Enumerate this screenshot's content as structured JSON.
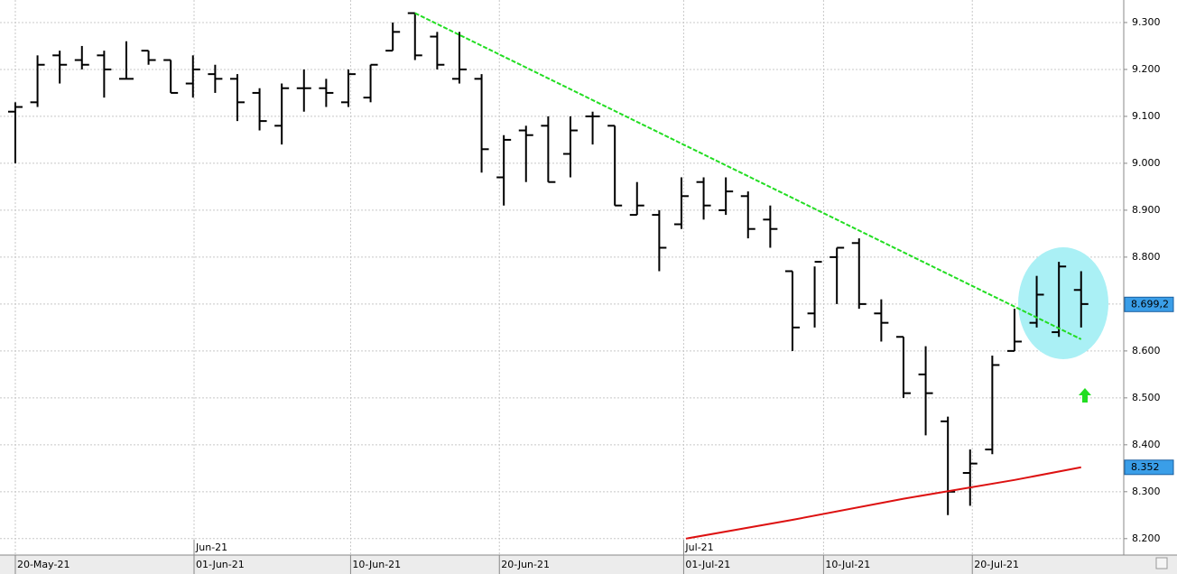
{
  "chart_data": {
    "type": "ohlc",
    "categories": [
      null,
      null,
      null,
      null,
      null,
      null,
      null,
      null,
      null,
      null,
      null,
      null,
      null,
      null,
      null,
      null,
      null,
      null,
      null,
      null,
      null,
      null,
      null,
      null,
      null,
      null,
      null,
      null,
      null,
      null,
      null,
      null,
      null,
      null,
      null,
      null,
      null,
      null,
      null,
      null,
      null,
      null,
      null,
      null,
      null,
      null,
      null,
      null,
      null
    ],
    "open": [
      9.11,
      9.13,
      9.23,
      9.22,
      9.23,
      9.18,
      9.24,
      9.22,
      9.17,
      9.19,
      9.18,
      9.15,
      9.08,
      9.16,
      9.16,
      9.13,
      9.14,
      9.24,
      9.32,
      9.27,
      9.18,
      9.18,
      8.97,
      9.07,
      9.08,
      9.02,
      9.1,
      9.08,
      8.89,
      8.89,
      8.87,
      8.96,
      8.9,
      8.93,
      8.88,
      8.77,
      8.68,
      8.8,
      8.83,
      8.68,
      8.63,
      8.55,
      8.45,
      8.34,
      8.39,
      8.6,
      8.66,
      8.64,
      8.73
    ],
    "high": [
      9.13,
      9.23,
      9.24,
      9.25,
      9.24,
      9.26,
      9.24,
      9.22,
      9.23,
      9.21,
      9.19,
      9.16,
      9.17,
      9.2,
      9.18,
      9.2,
      9.21,
      9.3,
      9.32,
      9.28,
      9.28,
      9.19,
      9.06,
      9.08,
      9.1,
      9.1,
      9.11,
      9.08,
      8.96,
      8.9,
      8.97,
      8.97,
      8.97,
      8.94,
      8.91,
      8.77,
      8.78,
      8.82,
      8.84,
      8.71,
      8.63,
      8.61,
      8.46,
      8.39,
      8.59,
      8.69,
      8.76,
      8.79,
      8.77
    ],
    "low": [
      9.0,
      9.12,
      9.17,
      9.2,
      9.14,
      9.18,
      9.21,
      9.15,
      9.14,
      9.15,
      9.09,
      9.07,
      9.04,
      9.11,
      9.12,
      9.12,
      9.13,
      9.24,
      9.22,
      9.2,
      9.17,
      8.98,
      8.91,
      8.96,
      8.96,
      8.97,
      9.04,
      8.91,
      8.89,
      8.77,
      8.86,
      8.88,
      8.89,
      8.84,
      8.82,
      8.6,
      8.65,
      8.7,
      8.69,
      8.62,
      8.5,
      8.42,
      8.25,
      8.27,
      8.38,
      8.6,
      8.65,
      8.63,
      8.65
    ],
    "close": [
      9.12,
      9.21,
      9.21,
      9.21,
      9.2,
      9.18,
      9.22,
      9.15,
      9.2,
      9.18,
      9.13,
      9.09,
      9.16,
      9.16,
      9.15,
      9.19,
      9.21,
      9.28,
      9.23,
      9.21,
      9.2,
      9.03,
      9.05,
      9.06,
      8.96,
      9.07,
      9.1,
      8.91,
      8.91,
      8.82,
      8.93,
      8.91,
      8.94,
      8.86,
      8.86,
      8.65,
      8.79,
      8.82,
      8.7,
      8.66,
      8.51,
      8.51,
      8.3,
      8.36,
      8.57,
      8.62,
      8.72,
      8.78,
      8.7
    ],
    "color": "#000000",
    "xlim": [
      -0.69,
      49.92
    ],
    "xticks": [
      {
        "value": 0,
        "label": "20-May-21"
      },
      {
        "value": 8.05,
        "label": "01-Jun-21"
      },
      {
        "value": 15.1,
        "label": "10-Jun-21"
      },
      {
        "value": 21.8,
        "label": "20-Jun-21"
      },
      {
        "value": 30.1,
        "label": "01-Jul-21"
      },
      {
        "value": 36.4,
        "label": "10-Jul-21"
      },
      {
        "value": 43.1,
        "label": "20-Jul-21"
      }
    ],
    "month_ticks": [
      {
        "value": 8.05,
        "label": "Jun-21"
      },
      {
        "value": 30.1,
        "label": "Jul-21"
      }
    ],
    "ylim": [
      8.165,
      9.348
    ],
    "yticks": [
      {
        "value": 8.2,
        "label": "8.200"
      },
      {
        "value": 8.3,
        "label": "8.300"
      },
      {
        "value": 8.4,
        "label": "8.400"
      },
      {
        "value": 8.5,
        "label": "8.500"
      },
      {
        "value": 8.6,
        "label": "8.600"
      },
      {
        "value": 8.7,
        "label": "8.700"
      },
      {
        "value": 8.8,
        "label": "8.800"
      },
      {
        "value": 8.9,
        "label": "8.900"
      },
      {
        "value": 9.0,
        "label": "9.000"
      },
      {
        "value": 9.1,
        "label": "9.100"
      },
      {
        "value": 9.2,
        "label": "9.200"
      },
      {
        "value": 9.3,
        "label": "9.300"
      }
    ],
    "grid": true,
    "trendline": {
      "color": "#22dd22",
      "x": [
        18,
        48
      ],
      "values": [
        9.32,
        8.625
      ]
    },
    "moving_average": {
      "color": "#dd1111",
      "x": [
        30.2,
        35,
        40,
        45,
        48
      ],
      "values": [
        8.2,
        8.24,
        8.285,
        8.325,
        8.352
      ]
    },
    "price_labels": [
      {
        "value": 8.6992,
        "label": "8.699,2"
      },
      {
        "value": 8.352,
        "label": "8.352"
      }
    ]
  }
}
